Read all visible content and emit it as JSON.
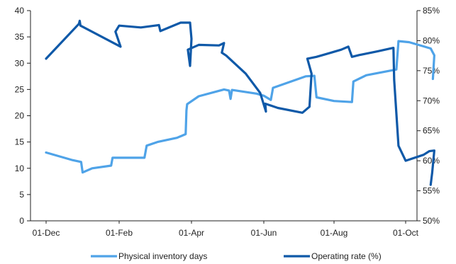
{
  "chart_data": {
    "type": "line",
    "title": "",
    "xlabel": "",
    "ylabel": "",
    "x_ticks": [
      "01-Dec",
      "01-Feb",
      "01-Apr",
      "01-Jun",
      "01-Aug",
      "01-Oct"
    ],
    "y_left": {
      "ticks": [
        "0",
        "5",
        "10",
        "15",
        "20",
        "25",
        "30",
        "35",
        "40"
      ],
      "range": [
        0,
        40
      ]
    },
    "y_right": {
      "ticks": [
        "50%",
        "55%",
        "60%",
        "65%",
        "70%",
        "75%",
        "80%",
        "85%"
      ],
      "range": [
        50,
        85
      ]
    },
    "grid": false,
    "legend_position": "bottom",
    "series": [
      {
        "name": "Physical inventory days",
        "axis": "left",
        "color": "#4fa3e8",
        "points": [
          [
            0.0,
            13.0
          ],
          [
            0.35,
            11.6
          ],
          [
            0.48,
            11.2
          ],
          [
            0.5,
            9.2
          ],
          [
            0.63,
            10.0
          ],
          [
            0.89,
            10.5
          ],
          [
            0.91,
            12.0
          ],
          [
            1.22,
            12.0
          ],
          [
            1.35,
            12.0
          ],
          [
            1.38,
            14.3
          ],
          [
            1.53,
            15.0
          ],
          [
            1.8,
            15.8
          ],
          [
            1.92,
            16.5
          ],
          [
            1.93,
            21.0
          ],
          [
            1.94,
            22.2
          ],
          [
            2.1,
            23.7
          ],
          [
            2.45,
            25.0
          ],
          [
            2.52,
            24.8
          ],
          [
            2.54,
            23.2
          ],
          [
            2.56,
            24.9
          ],
          [
            2.9,
            24.2
          ],
          [
            3.0,
            23.8
          ],
          [
            3.1,
            23.0
          ],
          [
            3.12,
            24.5
          ],
          [
            3.13,
            25.3
          ],
          [
            3.6,
            27.5
          ],
          [
            3.72,
            27.6
          ],
          [
            3.75,
            23.5
          ],
          [
            4.0,
            22.8
          ],
          [
            4.25,
            22.6
          ],
          [
            4.27,
            26.5
          ],
          [
            4.45,
            27.7
          ],
          [
            4.87,
            28.8
          ],
          [
            4.9,
            34.2
          ],
          [
            5.05,
            34.0
          ],
          [
            5.25,
            33.2
          ],
          [
            5.35,
            32.8
          ],
          [
            5.4,
            31.5
          ],
          [
            5.38,
            27.0
          ]
        ]
      },
      {
        "name": "Operating rate (%)",
        "axis": "right",
        "color": "#0f59a8",
        "points": [
          [
            0.0,
            77.0
          ],
          [
            0.45,
            82.8
          ],
          [
            0.46,
            83.3
          ],
          [
            0.47,
            82.5
          ],
          [
            1.02,
            79.0
          ],
          [
            0.95,
            81.5
          ],
          [
            1.0,
            82.5
          ],
          [
            1.3,
            82.2
          ],
          [
            1.55,
            82.6
          ],
          [
            1.57,
            81.6
          ],
          [
            1.85,
            83.0
          ],
          [
            1.98,
            83.0
          ],
          [
            2.0,
            80.3
          ],
          [
            1.98,
            75.8
          ],
          [
            1.95,
            78.5
          ],
          [
            2.1,
            79.3
          ],
          [
            2.38,
            79.2
          ],
          [
            2.45,
            79.6
          ],
          [
            2.42,
            78.0
          ],
          [
            2.48,
            77.5
          ],
          [
            2.75,
            74.5
          ],
          [
            2.95,
            71.3
          ],
          [
            3.03,
            68.2
          ],
          [
            3.02,
            69.5
          ],
          [
            3.2,
            68.8
          ],
          [
            3.55,
            68.0
          ],
          [
            3.65,
            69.0
          ],
          [
            3.68,
            74.5
          ],
          [
            3.62,
            77.0
          ],
          [
            3.75,
            77.3
          ],
          [
            3.9,
            77.8
          ],
          [
            4.1,
            78.5
          ],
          [
            4.2,
            79.0
          ],
          [
            4.25,
            77.3
          ],
          [
            4.35,
            77.6
          ],
          [
            4.6,
            78.2
          ],
          [
            4.83,
            78.8
          ],
          [
            4.84,
            73.5
          ],
          [
            4.9,
            62.5
          ],
          [
            5.0,
            60.0
          ],
          [
            5.25,
            61.0
          ],
          [
            5.33,
            61.6
          ],
          [
            5.4,
            61.7
          ],
          [
            5.37,
            58.0
          ],
          [
            5.35,
            56.0
          ]
        ]
      }
    ]
  }
}
